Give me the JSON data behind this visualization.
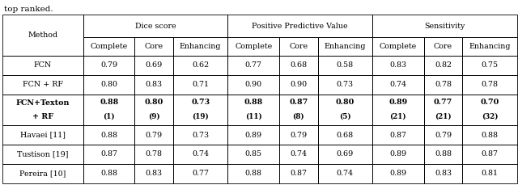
{
  "title_text": "top ranked.",
  "rows": [
    {
      "method": "FCN",
      "method2": "",
      "values": [
        "0.79",
        "0.69",
        "0.62",
        "0.77",
        "0.68",
        "0.58",
        "0.83",
        "0.82",
        "0.75"
      ],
      "bold_method": false,
      "bold": [
        false,
        false,
        false,
        false,
        false,
        false,
        false,
        false,
        false
      ],
      "sub": [
        "",
        "",
        "",
        "",
        "",
        "",
        "",
        "",
        ""
      ]
    },
    {
      "method": "FCN + RF",
      "method2": "",
      "values": [
        "0.80",
        "0.83",
        "0.71",
        "0.90",
        "0.90",
        "0.73",
        "0.74",
        "0.78",
        "0.78"
      ],
      "bold_method": false,
      "bold": [
        false,
        false,
        false,
        false,
        false,
        false,
        false,
        false,
        false
      ],
      "sub": [
        "",
        "",
        "",
        "",
        "",
        "",
        "",
        "",
        ""
      ]
    },
    {
      "method": "FCN+Texton",
      "method2": "+ RF",
      "values": [
        "0.88",
        "0.80",
        "0.73",
        "0.88",
        "0.87",
        "0.80",
        "0.89",
        "0.77",
        "0.70"
      ],
      "bold_method": true,
      "bold": [
        true,
        true,
        true,
        true,
        true,
        true,
        true,
        true,
        true
      ],
      "sub": [
        "(1)",
        "(9)",
        "(19)",
        "(11)",
        "(8)",
        "(5)",
        "(21)",
        "(21)",
        "(32)"
      ]
    },
    {
      "method": "Havaei [11]",
      "method2": "",
      "values": [
        "0.88",
        "0.79",
        "0.73",
        "0.89",
        "0.79",
        "0.68",
        "0.87",
        "0.79",
        "0.88"
      ],
      "bold_method": false,
      "bold": [
        false,
        false,
        false,
        false,
        false,
        false,
        false,
        false,
        false
      ],
      "sub": [
        "",
        "",
        "",
        "",
        "",
        "",
        "",
        "",
        ""
      ]
    },
    {
      "method": "Tustison [19]",
      "method2": "",
      "values": [
        "0.87",
        "0.78",
        "0.74",
        "0.85",
        "0.74",
        "0.69",
        "0.89",
        "0.88",
        "0.87"
      ],
      "bold_method": false,
      "bold": [
        false,
        false,
        false,
        false,
        false,
        false,
        false,
        false,
        false
      ],
      "sub": [
        "",
        "",
        "",
        "",
        "",
        "",
        "",
        "",
        ""
      ]
    },
    {
      "method": "Pereira [10]",
      "method2": "",
      "values": [
        "0.88",
        "0.83",
        "0.77",
        "0.88",
        "0.87",
        "0.74",
        "0.89",
        "0.83",
        "0.81"
      ],
      "bold_method": false,
      "bold": [
        false,
        false,
        false,
        false,
        false,
        false,
        false,
        false,
        false
      ],
      "sub": [
        "",
        "",
        "",
        "",
        "",
        "",
        "",
        "",
        ""
      ]
    }
  ],
  "bg_color": "#ffffff",
  "text_color": "#000000",
  "font_size": 6.8,
  "header_font_size": 6.8,
  "title_font_size": 7.5,
  "lw": 0.6
}
